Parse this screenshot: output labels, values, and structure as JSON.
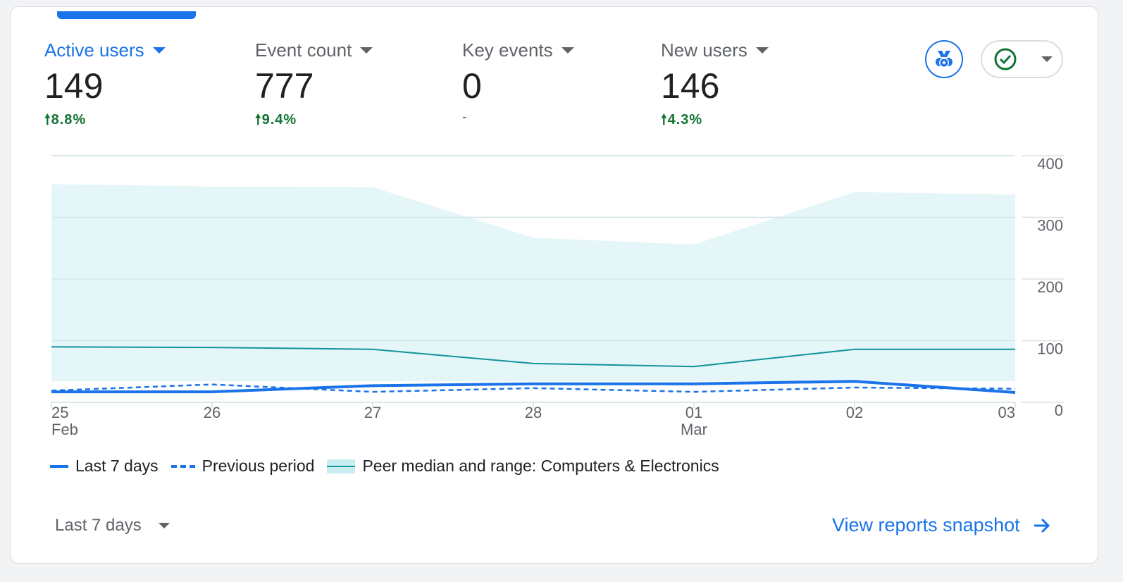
{
  "metrics": [
    {
      "label": "Active users",
      "value": "149",
      "change": "8.8%",
      "direction": "up",
      "active": true
    },
    {
      "label": "Event count",
      "value": "777",
      "change": "9.4%",
      "direction": "up",
      "active": false
    },
    {
      "label": "Key events",
      "value": "0",
      "change": "-",
      "direction": "none",
      "active": false
    },
    {
      "label": "New users",
      "value": "146",
      "change": "4.3%",
      "direction": "up",
      "active": false
    }
  ],
  "icons": {
    "benchmark": "medal-icon",
    "status": "check-circle-icon"
  },
  "colors": {
    "accent": "#1a73e8",
    "positive": "#137333",
    "peer_line": "#12939a",
    "peer_fill": "#e4f6f8"
  },
  "chart_data": {
    "type": "line",
    "x": [
      "25",
      "26",
      "27",
      "28",
      "01",
      "02",
      "03"
    ],
    "x_sublabels": [
      "Feb",
      "",
      "",
      "",
      "Mar",
      "",
      ""
    ],
    "ylim": [
      0,
      400
    ],
    "yticks": [
      "0",
      "100",
      "200",
      "300",
      "400"
    ],
    "y_axis_side": "right",
    "grid": true,
    "legend_placement": "bottom",
    "series": [
      {
        "name": "Last 7 days",
        "style": "solid",
        "values": [
          17,
          17,
          27,
          30,
          30,
          34,
          16
        ]
      },
      {
        "name": "Previous period",
        "style": "dashed",
        "values": [
          19,
          29,
          17,
          23,
          17,
          24,
          22
        ]
      },
      {
        "name": "Peer median and range: Computers & Electronics",
        "style": "band",
        "median": [
          90,
          89,
          86,
          63,
          58,
          86,
          86
        ],
        "low": [
          34,
          34,
          34,
          34,
          34,
          34,
          34
        ],
        "high": [
          354,
          350,
          349,
          267,
          256,
          341,
          337
        ]
      }
    ]
  },
  "footer": {
    "range_label": "Last 7 days",
    "link_label": "View reports snapshot"
  }
}
